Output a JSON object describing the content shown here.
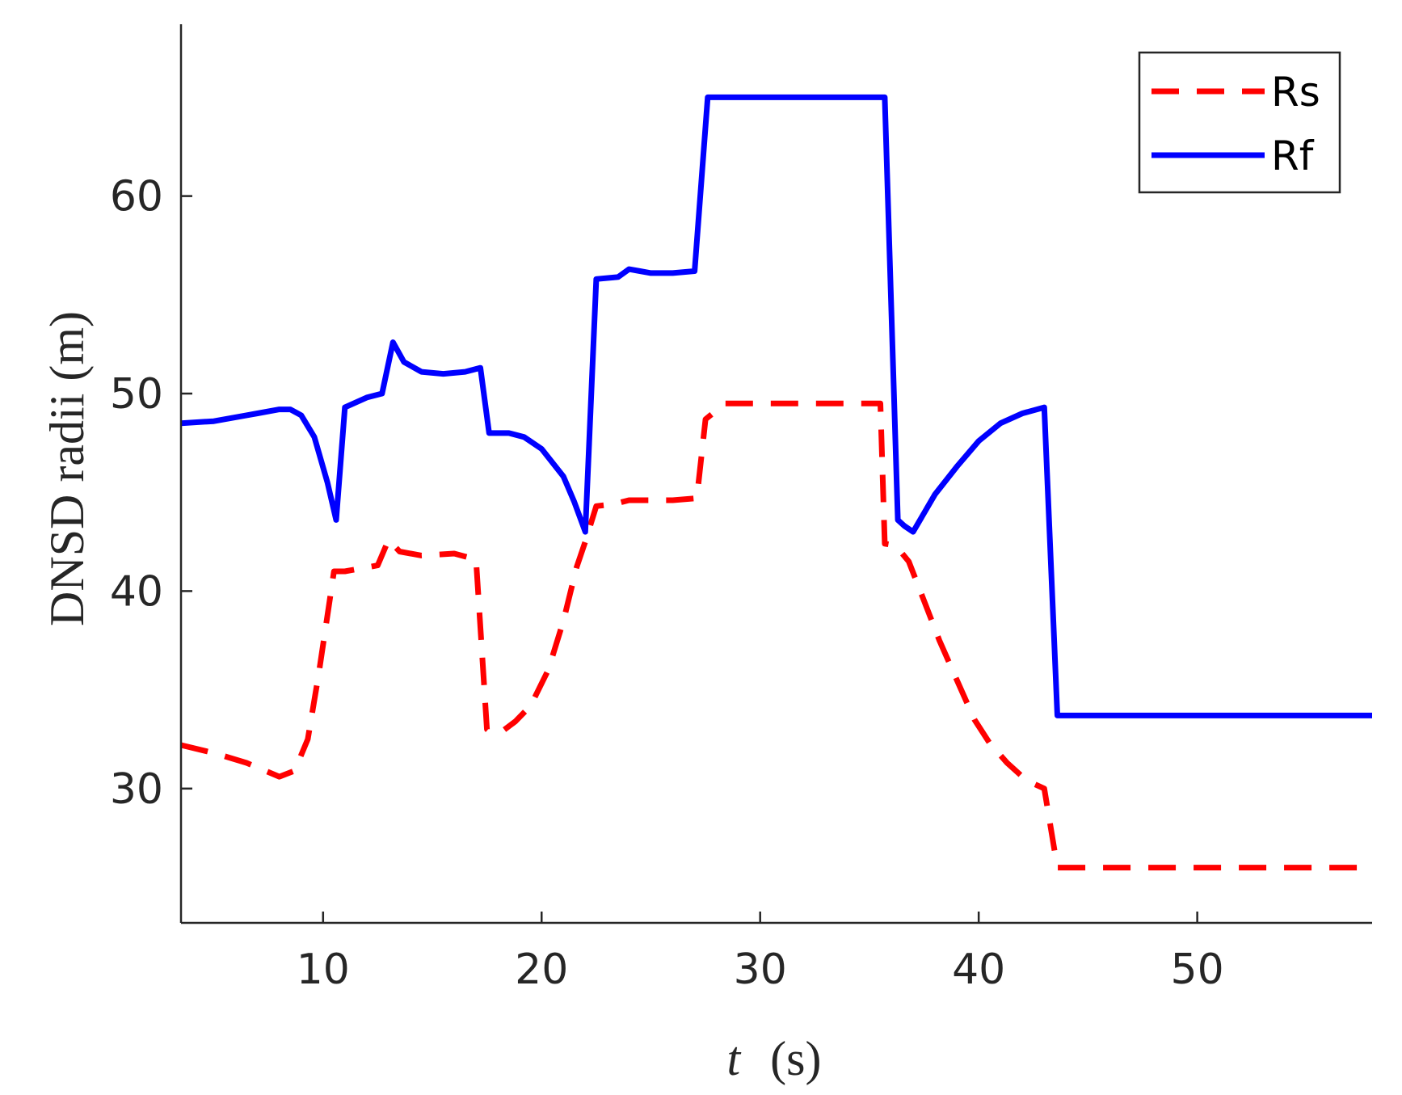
{
  "chart_data": {
    "type": "line",
    "title": "",
    "xlabel": {
      "var": "t",
      "unit": "(s)"
    },
    "ylabel": "DNSD radii (m)",
    "xlim": [
      3.5,
      58
    ],
    "ylim": [
      23.2,
      68.7
    ],
    "xticks": [
      10,
      20,
      30,
      40,
      50
    ],
    "yticks": [
      30,
      40,
      50,
      60
    ],
    "grid": false,
    "legend_position": "top-right",
    "series": [
      {
        "name": "Rs",
        "color": "#ff0000",
        "style": "dashed",
        "x": [
          3.5,
          5,
          6.5,
          8,
          8.7,
          9.3,
          9.8,
          10.3,
          10.5,
          11,
          12,
          12.5,
          13,
          13.5,
          14.5,
          16,
          17,
          17.5,
          17.6,
          18.2,
          18.8,
          19.5,
          20.3,
          21,
          21.6,
          22,
          22.5,
          23.3,
          24,
          25,
          26,
          27.1,
          27.5,
          28.4,
          30,
          33,
          35.5,
          35.7,
          36.2,
          36.8,
          37.5,
          38.2,
          39,
          39.8,
          40.5,
          41.3,
          42.2,
          43,
          43.6,
          45,
          50,
          58
        ],
        "y": [
          32.2,
          31.8,
          31.3,
          30.6,
          30.9,
          32.5,
          35.8,
          39.5,
          41,
          41.0,
          41.2,
          41.3,
          42.6,
          42.0,
          41.8,
          41.9,
          41.6,
          33.0,
          32.9,
          32.9,
          33.4,
          34.2,
          36.0,
          38.5,
          41.2,
          42.5,
          44.3,
          44.4,
          44.6,
          44.6,
          44.6,
          44.7,
          48.7,
          49.5,
          49.5,
          49.5,
          49.5,
          42.4,
          42.3,
          41.5,
          39.5,
          37.5,
          35.5,
          33.5,
          32.3,
          31.3,
          30.4,
          30.0,
          26.0,
          26.0,
          26.0,
          26.0
        ]
      },
      {
        "name": "Rf",
        "color": "#0000ff",
        "style": "solid",
        "x": [
          3.5,
          5,
          6.5,
          7,
          8,
          8.5,
          9,
          9.6,
          10.2,
          10.6,
          11,
          12,
          12.7,
          13.2,
          13.7,
          14.5,
          15.5,
          16.5,
          17.2,
          17.6,
          18.5,
          19.2,
          20,
          21,
          21.5,
          22,
          22.5,
          23.5,
          24,
          24.5,
          25,
          26,
          27,
          27.6,
          30,
          33,
          35.7,
          36.3,
          36.6,
          37,
          38,
          39,
          40,
          41,
          42,
          43,
          43.6,
          50,
          58
        ],
        "y": [
          48.5,
          48.6,
          48.9,
          49.0,
          49.2,
          49.2,
          48.9,
          47.8,
          45.5,
          43.6,
          49.3,
          49.8,
          50.0,
          52.6,
          51.6,
          51.1,
          51.0,
          51.1,
          51.3,
          48.0,
          48.0,
          47.8,
          47.2,
          45.8,
          44.5,
          43.0,
          55.8,
          55.9,
          56.3,
          56.2,
          56.1,
          56.1,
          56.2,
          65.0,
          65.0,
          65.0,
          65.0,
          43.6,
          43.3,
          43.0,
          44.9,
          46.3,
          47.6,
          48.5,
          49.0,
          49.3,
          33.7,
          33.7,
          33.7
        ]
      }
    ]
  }
}
